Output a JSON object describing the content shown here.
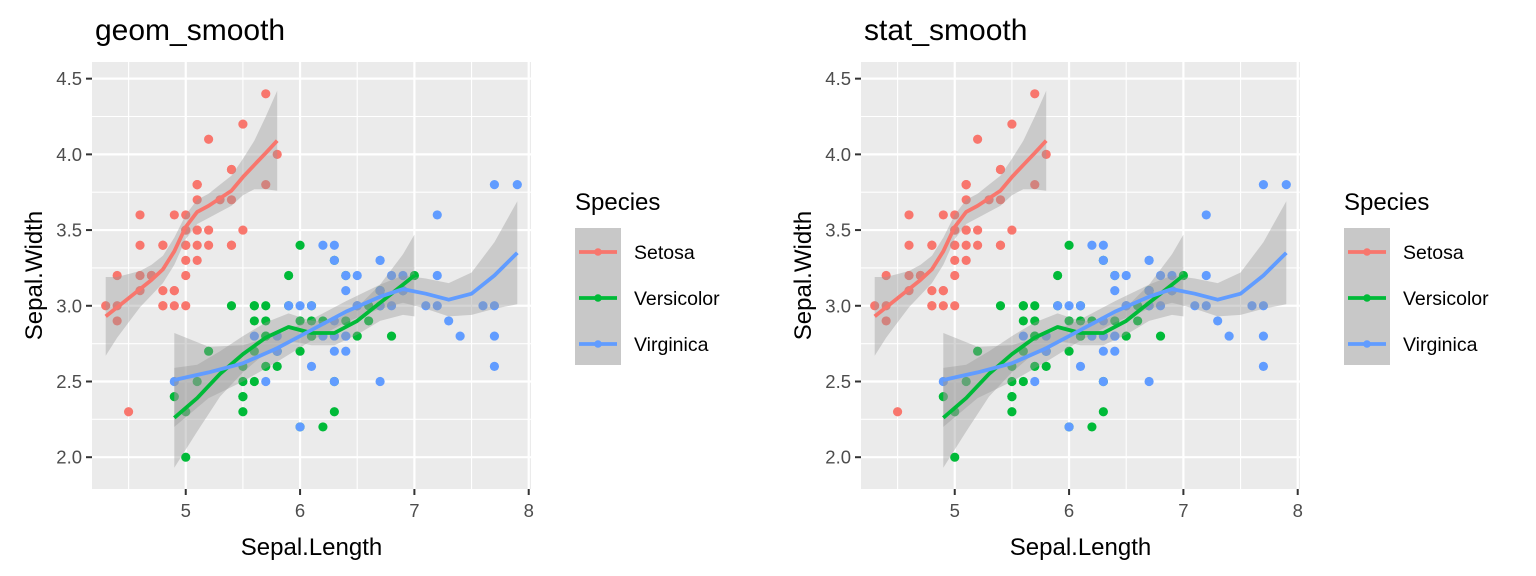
{
  "chart_data": [
    {
      "type": "scatter",
      "title": "geom_smooth",
      "xlabel": "Sepal.Length",
      "ylabel": "Sepal.Width",
      "xlim": [
        4.18,
        8.02
      ],
      "ylim": [
        1.79,
        4.61
      ],
      "xticks": [
        "5",
        "6",
        "7",
        "8"
      ],
      "xtick_values": [
        5,
        6,
        7,
        8
      ],
      "yticks": [
        "2.0",
        "2.5",
        "3.0",
        "3.5",
        "4.0",
        "4.5"
      ],
      "ytick_values": [
        2.0,
        2.5,
        3.0,
        3.5,
        4.0,
        4.5
      ],
      "grid": true,
      "legend": {
        "title": "Species",
        "position": "right",
        "entries": [
          "Setosa",
          "Versicolor",
          "Virginica"
        ]
      },
      "smooth": "loess with confidence band",
      "series_ref": "iris"
    },
    {
      "type": "scatter",
      "title": "stat_smooth",
      "xlabel": "Sepal.Length",
      "ylabel": "Sepal.Width",
      "xlim": [
        4.18,
        8.02
      ],
      "ylim": [
        1.79,
        4.61
      ],
      "xticks": [
        "5",
        "6",
        "7",
        "8"
      ],
      "xtick_values": [
        5,
        6,
        7,
        8
      ],
      "yticks": [
        "2.0",
        "2.5",
        "3.0",
        "3.5",
        "4.0",
        "4.5"
      ],
      "ytick_values": [
        2.0,
        2.5,
        3.0,
        3.5,
        4.0,
        4.5
      ],
      "grid": true,
      "legend": {
        "title": "Species",
        "position": "right",
        "entries": [
          "Setosa",
          "Versicolor",
          "Virginica"
        ]
      },
      "smooth": "loess with confidence band",
      "series_ref": "iris"
    }
  ],
  "iris": {
    "series": [
      {
        "name": "Setosa",
        "color": "#F8766D",
        "x": [
          5.1,
          4.9,
          4.7,
          4.6,
          5.0,
          5.4,
          4.6,
          5.0,
          4.4,
          4.9,
          5.4,
          4.8,
          4.8,
          4.3,
          5.8,
          5.7,
          5.4,
          5.1,
          5.7,
          5.1,
          5.4,
          5.1,
          4.6,
          5.1,
          4.8,
          5.0,
          5.0,
          5.2,
          5.2,
          4.7,
          4.8,
          5.4,
          5.2,
          5.5,
          4.9,
          5.0,
          5.5,
          4.9,
          4.4,
          5.1,
          5.0,
          4.5,
          4.4,
          5.0,
          5.1,
          4.8,
          5.1,
          4.6,
          5.3,
          5.0
        ],
        "y": [
          3.5,
          3.0,
          3.2,
          3.1,
          3.6,
          3.9,
          3.4,
          3.4,
          2.9,
          3.1,
          3.7,
          3.4,
          3.0,
          3.0,
          4.0,
          4.4,
          3.9,
          3.5,
          3.8,
          3.8,
          3.4,
          3.7,
          3.6,
          3.3,
          3.4,
          3.0,
          3.4,
          3.5,
          3.4,
          3.2,
          3.1,
          3.4,
          4.1,
          4.2,
          3.1,
          3.2,
          3.5,
          3.6,
          3.0,
          3.4,
          3.5,
          2.3,
          3.2,
          3.5,
          3.8,
          3.0,
          3.8,
          3.2,
          3.7,
          3.3
        ],
        "smooth_x": [
          4.3,
          4.4,
          4.5,
          4.6,
          4.7,
          4.8,
          4.9,
          5.0,
          5.1,
          5.2,
          5.3,
          5.4,
          5.5,
          5.6,
          5.7,
          5.8
        ],
        "smooth_y": [
          2.93,
          2.99,
          3.05,
          3.11,
          3.17,
          3.24,
          3.36,
          3.52,
          3.62,
          3.66,
          3.71,
          3.76,
          3.85,
          3.93,
          4.01,
          4.09
        ],
        "smooth_se": [
          0.26,
          0.2,
          0.16,
          0.12,
          0.1,
          0.09,
          0.09,
          0.08,
          0.08,
          0.08,
          0.09,
          0.1,
          0.12,
          0.16,
          0.24,
          0.33
        ]
      },
      {
        "name": "Versicolor",
        "color": "#00BA38",
        "x": [
          7.0,
          6.4,
          6.9,
          5.5,
          6.5,
          5.7,
          6.3,
          4.9,
          6.6,
          5.2,
          5.0,
          5.9,
          6.0,
          6.1,
          5.6,
          6.7,
          5.6,
          5.8,
          6.2,
          5.6,
          5.9,
          6.1,
          6.3,
          6.1,
          6.4,
          6.6,
          6.8,
          6.7,
          6.0,
          5.7,
          5.5,
          5.5,
          5.8,
          6.0,
          5.4,
          6.0,
          6.7,
          6.3,
          5.6,
          5.5,
          5.5,
          6.1,
          5.8,
          5.0,
          5.6,
          5.7,
          5.7,
          6.2,
          5.1,
          5.7
        ],
        "y": [
          3.2,
          3.2,
          3.1,
          2.3,
          2.8,
          2.8,
          3.3,
          2.4,
          2.9,
          2.7,
          2.0,
          3.0,
          2.2,
          2.9,
          2.9,
          3.1,
          3.0,
          2.7,
          2.2,
          2.5,
          3.2,
          2.8,
          2.5,
          2.8,
          2.9,
          3.0,
          2.8,
          3.0,
          2.9,
          2.6,
          2.4,
          2.4,
          2.7,
          2.7,
          3.0,
          3.4,
          3.1,
          2.3,
          3.0,
          2.5,
          2.6,
          3.0,
          2.6,
          2.3,
          2.7,
          3.0,
          2.9,
          2.9,
          2.5,
          2.8
        ],
        "smooth_x": [
          4.9,
          5.1,
          5.3,
          5.5,
          5.7,
          5.9,
          6.1,
          6.3,
          6.5,
          6.7,
          6.9,
          7.0
        ],
        "smooth_y": [
          2.26,
          2.39,
          2.55,
          2.68,
          2.79,
          2.86,
          2.82,
          2.82,
          2.9,
          3.02,
          3.14,
          3.2
        ],
        "smooth_se": [
          0.33,
          0.22,
          0.15,
          0.12,
          0.1,
          0.09,
          0.08,
          0.08,
          0.09,
          0.12,
          0.2,
          0.27
        ]
      },
      {
        "name": "Virginica",
        "color": "#619CFF",
        "x": [
          6.3,
          5.8,
          7.1,
          6.3,
          6.5,
          7.6,
          4.9,
          7.3,
          6.7,
          7.2,
          6.5,
          6.4,
          6.8,
          5.7,
          5.8,
          6.4,
          6.5,
          7.7,
          7.7,
          6.0,
          6.9,
          5.6,
          7.7,
          6.3,
          6.7,
          7.2,
          6.2,
          6.1,
          6.4,
          7.2,
          7.4,
          7.9,
          6.4,
          6.3,
          6.1,
          7.7,
          6.3,
          6.4,
          6.0,
          6.9,
          6.7,
          6.9,
          5.8,
          6.8,
          6.7,
          6.7,
          6.3,
          6.5,
          6.2,
          5.9
        ],
        "y": [
          3.3,
          2.7,
          3.0,
          2.9,
          3.0,
          3.0,
          2.5,
          2.9,
          2.5,
          3.6,
          3.2,
          2.7,
          3.0,
          2.5,
          2.8,
          3.2,
          3.0,
          3.8,
          2.6,
          2.2,
          3.2,
          2.8,
          2.8,
          2.7,
          3.3,
          3.2,
          2.8,
          3.0,
          2.8,
          3.0,
          2.8,
          3.8,
          2.8,
          2.8,
          2.6,
          3.0,
          3.4,
          3.1,
          3.0,
          3.1,
          3.1,
          3.1,
          2.7,
          3.2,
          3.3,
          3.0,
          2.5,
          3.0,
          3.4,
          3.0
        ],
        "smooth_x": [
          4.9,
          5.2,
          5.5,
          5.8,
          6.1,
          6.4,
          6.7,
          6.9,
          7.1,
          7.3,
          7.5,
          7.7,
          7.9
        ],
        "smooth_y": [
          2.51,
          2.56,
          2.62,
          2.72,
          2.84,
          2.96,
          3.06,
          3.11,
          3.08,
          3.04,
          3.08,
          3.2,
          3.35
        ],
        "smooth_se": [
          0.31,
          0.17,
          0.12,
          0.09,
          0.07,
          0.07,
          0.08,
          0.09,
          0.1,
          0.11,
          0.14,
          0.22,
          0.34
        ]
      }
    ]
  }
}
